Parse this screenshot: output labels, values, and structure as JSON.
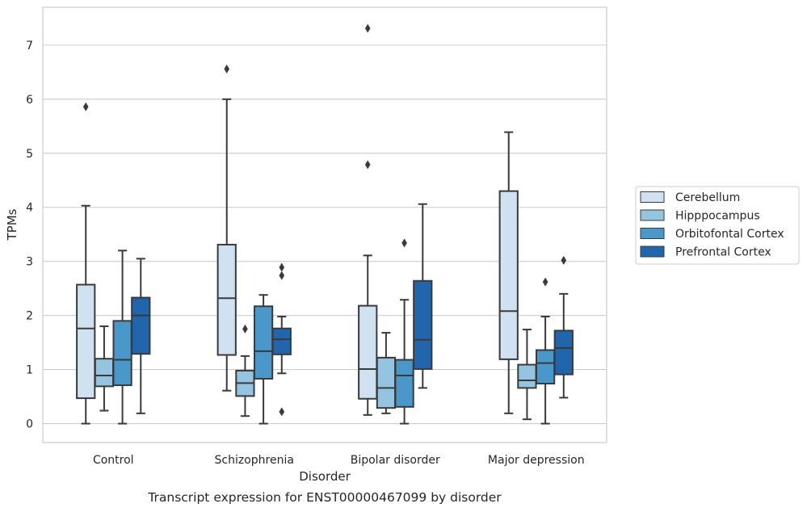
{
  "caption": "Transcript expression for ENST00000467099 by disorder",
  "chart_data": {
    "type": "box",
    "title": "",
    "xlabel": "Disorder",
    "ylabel": "TPMs",
    "ylim": [
      -0.35,
      7.7
    ],
    "yticks": [
      0,
      1,
      2,
      3,
      4,
      5,
      6,
      7
    ],
    "grid": "horizontal",
    "legend_position": "right",
    "categories": [
      "Control",
      "Schizophrenia",
      "Bipolar disorder",
      "Major depression"
    ],
    "series": [
      {
        "name": "Cerebellum",
        "color": "#d0e1f2",
        "boxes": [
          {
            "whisker_low": 0.0,
            "q1": 0.47,
            "median": 1.76,
            "q3": 2.57,
            "whisker_high": 4.03,
            "outliers": [
              5.86
            ]
          },
          {
            "whisker_low": 0.61,
            "q1": 1.27,
            "median": 2.32,
            "q3": 3.31,
            "whisker_high": 6.0,
            "outliers": [
              6.56
            ]
          },
          {
            "whisker_low": 0.16,
            "q1": 0.46,
            "median": 1.01,
            "q3": 2.18,
            "whisker_high": 3.11,
            "outliers": [
              4.79,
              7.31
            ]
          },
          {
            "whisker_low": 0.19,
            "q1": 1.19,
            "median": 2.08,
            "q3": 4.3,
            "whisker_high": 5.39,
            "outliers": []
          }
        ]
      },
      {
        "name": "Hipppocampus",
        "color": "#94c4df",
        "boxes": [
          {
            "whisker_low": 0.24,
            "q1": 0.69,
            "median": 0.89,
            "q3": 1.2,
            "whisker_high": 1.8,
            "outliers": []
          },
          {
            "whisker_low": 0.14,
            "q1": 0.51,
            "median": 0.75,
            "q3": 0.98,
            "whisker_high": 1.25,
            "outliers": [
              1.75
            ]
          },
          {
            "whisker_low": 0.19,
            "q1": 0.29,
            "median": 0.66,
            "q3": 1.22,
            "whisker_high": 1.68,
            "outliers": []
          },
          {
            "whisker_low": 0.08,
            "q1": 0.66,
            "median": 0.8,
            "q3": 1.09,
            "whisker_high": 1.74,
            "outliers": []
          }
        ]
      },
      {
        "name": "Orbitofontal Cortex",
        "color": "#4a98c9",
        "boxes": [
          {
            "whisker_low": 0.0,
            "q1": 0.71,
            "median": 1.18,
            "q3": 1.9,
            "whisker_high": 3.2,
            "outliers": []
          },
          {
            "whisker_low": 0.0,
            "q1": 0.83,
            "median": 1.34,
            "q3": 2.17,
            "whisker_high": 2.38,
            "outliers": []
          },
          {
            "whisker_low": 0.0,
            "q1": 0.31,
            "median": 0.89,
            "q3": 1.18,
            "whisker_high": 2.29,
            "outliers": [
              3.34
            ]
          },
          {
            "whisker_low": 0.0,
            "q1": 0.74,
            "median": 1.12,
            "q3": 1.36,
            "whisker_high": 1.98,
            "outliers": [
              2.62
            ]
          }
        ]
      },
      {
        "name": "Prefrontal Cortex",
        "color": "#2166ac",
        "boxes": [
          {
            "whisker_low": 0.19,
            "q1": 1.29,
            "median": 2.0,
            "q3": 2.33,
            "whisker_high": 3.05,
            "outliers": []
          },
          {
            "whisker_low": 0.93,
            "q1": 1.28,
            "median": 1.56,
            "q3": 1.76,
            "whisker_high": 1.98,
            "outliers": [
              0.22,
              2.74,
              2.89
            ]
          },
          {
            "whisker_low": 0.66,
            "q1": 1.01,
            "median": 1.55,
            "q3": 2.64,
            "whisker_high": 4.06,
            "outliers": []
          },
          {
            "whisker_low": 0.48,
            "q1": 0.91,
            "median": 1.4,
            "q3": 1.72,
            "whisker_high": 2.4,
            "outliers": [
              3.02
            ]
          }
        ]
      }
    ]
  }
}
